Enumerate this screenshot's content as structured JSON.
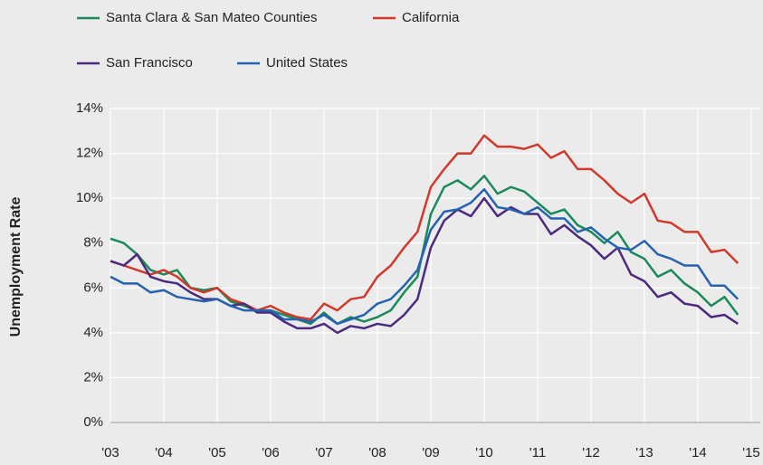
{
  "chart_data": {
    "type": "line",
    "y_label": "Unemployment Rate",
    "legend": "top",
    "grid": true,
    "x": [
      2003,
      2003.25,
      2003.5,
      2003.75,
      2004,
      2004.25,
      2004.5,
      2004.75,
      2005,
      2005.25,
      2005.5,
      2005.75,
      2006,
      2006.25,
      2006.5,
      2006.75,
      2007,
      2007.25,
      2007.5,
      2007.75,
      2008,
      2008.25,
      2008.5,
      2008.75,
      2009,
      2009.25,
      2009.5,
      2009.75,
      2010,
      2010.25,
      2010.5,
      2010.75,
      2011,
      2011.25,
      2011.5,
      2011.75,
      2012,
      2012.25,
      2012.5,
      2012.75,
      2013,
      2013.25,
      2013.5,
      2013.75,
      2014,
      2014.25,
      2014.5,
      2014.75
    ],
    "xlim": [
      2003,
      2015
    ],
    "xticks": [
      {
        "value": 2003,
        "label": "'03"
      },
      {
        "value": 2004,
        "label": "'04"
      },
      {
        "value": 2005,
        "label": "'05"
      },
      {
        "value": 2006,
        "label": "'06"
      },
      {
        "value": 2007,
        "label": "'07"
      },
      {
        "value": 2008,
        "label": "'08"
      },
      {
        "value": 2009,
        "label": "'09"
      },
      {
        "value": 2010,
        "label": "'10"
      },
      {
        "value": 2011,
        "label": "'11"
      },
      {
        "value": 2012,
        "label": "'12"
      },
      {
        "value": 2013,
        "label": "'13"
      },
      {
        "value": 2014,
        "label": "'14"
      },
      {
        "value": 2015,
        "label": "'15"
      }
    ],
    "ylim": [
      0,
      14
    ],
    "yticks": [
      {
        "value": 0,
        "label": "0%"
      },
      {
        "value": 2,
        "label": "2%"
      },
      {
        "value": 4,
        "label": "4%"
      },
      {
        "value": 6,
        "label": "6%"
      },
      {
        "value": 8,
        "label": "8%"
      },
      {
        "value": 10,
        "label": "10%"
      },
      {
        "value": 12,
        "label": "12%"
      },
      {
        "value": 14,
        "label": "14%"
      }
    ],
    "series": [
      {
        "name": "Santa Clara & San Mateo Counties",
        "color": "#1a8a5a",
        "values": [
          8.2,
          8.0,
          7.5,
          6.8,
          6.6,
          6.8,
          6.0,
          5.9,
          6.0,
          5.4,
          5.2,
          5.0,
          5.0,
          4.8,
          4.6,
          4.4,
          4.9,
          4.4,
          4.7,
          4.5,
          4.7,
          5.0,
          5.8,
          6.5,
          9.3,
          10.5,
          10.8,
          10.4,
          11.0,
          10.2,
          10.5,
          10.3,
          9.8,
          9.3,
          9.5,
          8.8,
          8.5,
          8.0,
          8.5,
          7.6,
          7.3,
          6.5,
          6.8,
          6.2,
          5.8,
          5.2,
          5.6,
          4.8
        ]
      },
      {
        "name": "California",
        "color": "#d0392b",
        "values": [
          7.2,
          7.0,
          6.8,
          6.6,
          6.8,
          6.5,
          6.0,
          5.8,
          6.0,
          5.5,
          5.3,
          5.0,
          5.2,
          4.9,
          4.7,
          4.6,
          5.3,
          5.0,
          5.5,
          5.6,
          6.5,
          7.0,
          7.8,
          8.5,
          10.5,
          11.3,
          12.0,
          12.0,
          12.8,
          12.3,
          12.3,
          12.2,
          12.4,
          11.8,
          12.1,
          11.3,
          11.3,
          10.8,
          10.2,
          9.8,
          10.2,
          9.0,
          8.9,
          8.5,
          8.5,
          7.6,
          7.7,
          7.1
        ]
      },
      {
        "name": "San Francisco",
        "color": "#4b2a7f",
        "values": [
          7.2,
          7.0,
          7.5,
          6.5,
          6.3,
          6.2,
          5.8,
          5.5,
          5.5,
          5.2,
          5.3,
          4.9,
          4.9,
          4.5,
          4.2,
          4.2,
          4.4,
          4.0,
          4.3,
          4.2,
          4.4,
          4.3,
          4.8,
          5.5,
          7.8,
          9.0,
          9.5,
          9.2,
          10.0,
          9.2,
          9.6,
          9.3,
          9.3,
          8.4,
          8.8,
          8.3,
          7.9,
          7.3,
          7.8,
          6.6,
          6.3,
          5.6,
          5.8,
          5.3,
          5.2,
          4.7,
          4.8,
          4.4
        ]
      },
      {
        "name": "United States",
        "color": "#2563b0",
        "values": [
          6.5,
          6.2,
          6.2,
          5.8,
          5.9,
          5.6,
          5.5,
          5.4,
          5.5,
          5.2,
          5.0,
          5.0,
          5.0,
          4.6,
          4.6,
          4.5,
          4.8,
          4.4,
          4.6,
          4.8,
          5.3,
          5.5,
          6.1,
          6.8,
          8.6,
          9.4,
          9.5,
          9.8,
          10.4,
          9.6,
          9.5,
          9.3,
          9.6,
          9.1,
          9.1,
          8.5,
          8.7,
          8.2,
          7.8,
          7.7,
          8.1,
          7.5,
          7.3,
          7.0,
          7.0,
          6.1,
          6.1,
          5.5
        ]
      }
    ]
  }
}
